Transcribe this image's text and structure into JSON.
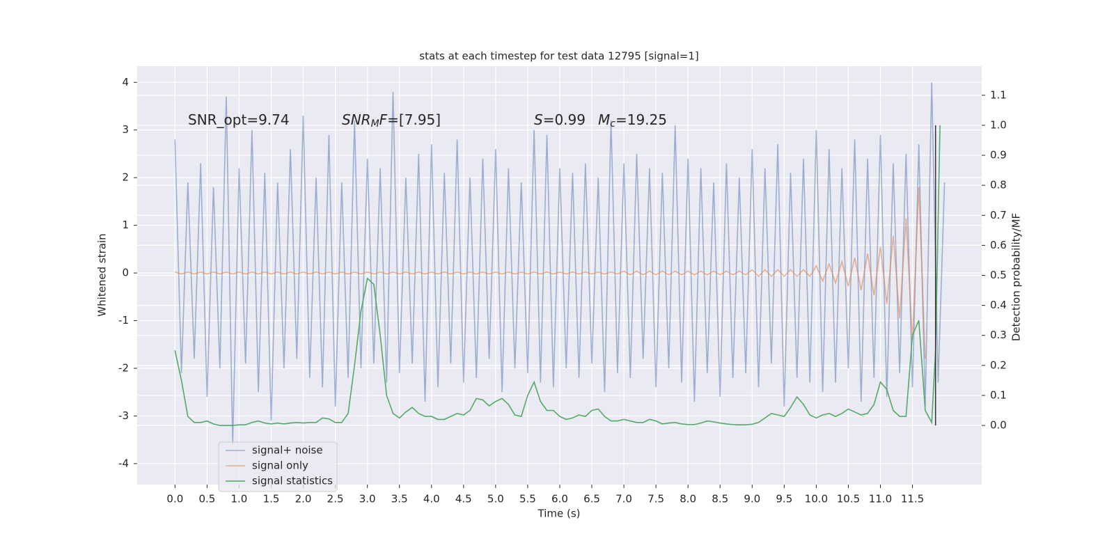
{
  "chart_data": {
    "type": "line",
    "title": "stats at each timestep for test data 12795 [signal=1]",
    "x_label": "Time (s)",
    "y_label": "Whitened strain",
    "y2_label": "Detection probability/MF",
    "xlim": [
      -0.59,
      12.58
    ],
    "ylim": [
      -4.44,
      4.34
    ],
    "y2lim": [
      -0.197,
      1.197
    ],
    "xticks": [
      {
        "value": 0,
        "label": "0.0"
      },
      {
        "value": 0.5,
        "label": "0.5"
      },
      {
        "value": 1,
        "label": "1.0"
      },
      {
        "value": 1.5,
        "label": "1.5"
      },
      {
        "value": 2,
        "label": "2.0"
      },
      {
        "value": 2.5,
        "label": "2.5"
      },
      {
        "value": 3,
        "label": "3.0"
      },
      {
        "value": 3.5,
        "label": "3.5"
      },
      {
        "value": 4,
        "label": "4.0"
      },
      {
        "value": 4.5,
        "label": "4.5"
      },
      {
        "value": 5,
        "label": "5.0"
      },
      {
        "value": 5.5,
        "label": "5.5"
      },
      {
        "value": 6,
        "label": "6.0"
      },
      {
        "value": 6.5,
        "label": "6.5"
      },
      {
        "value": 7,
        "label": "7.0"
      },
      {
        "value": 7.5,
        "label": "7.5"
      },
      {
        "value": 8,
        "label": "8.0"
      },
      {
        "value": 8.5,
        "label": "8.5"
      },
      {
        "value": 9,
        "label": "9.0"
      },
      {
        "value": 9.5,
        "label": "9.5"
      },
      {
        "value": 10,
        "label": "10.0"
      },
      {
        "value": 10.5,
        "label": "10.5"
      },
      {
        "value": 11,
        "label": "11.0"
      },
      {
        "value": 11.5,
        "label": "11.5"
      }
    ],
    "yticks": [
      -4,
      -3,
      -2,
      -1,
      0,
      1,
      2,
      3,
      4
    ],
    "y2ticks": [
      {
        "value": 0,
        "label": "0.0"
      },
      {
        "value": 0.1,
        "label": "0.1"
      },
      {
        "value": 0.2,
        "label": "0.2"
      },
      {
        "value": 0.3,
        "label": "0.3"
      },
      {
        "value": 0.4,
        "label": "0.4"
      },
      {
        "value": 0.5,
        "label": "0.5"
      },
      {
        "value": 0.6,
        "label": "0.6"
      },
      {
        "value": 0.7,
        "label": "0.7"
      },
      {
        "value": 0.8,
        "label": "0.8"
      },
      {
        "value": 0.9,
        "label": "0.9"
      },
      {
        "value": 1,
        "label": "1.0"
      },
      {
        "value": 1.1,
        "label": "1.1"
      }
    ],
    "grid": true,
    "legend": "lower left",
    "annotations": [
      [
        {
          "text": "SNR_opt=9.74"
        }
      ],
      [
        {
          "text": "SNR",
          "italic": true
        },
        {
          "text": "M",
          "italic": true,
          "sub": true
        },
        {
          "text": "F",
          "italic": true
        },
        {
          "text": "=[7.95]"
        }
      ],
      [
        {
          "text": "S",
          "italic": true
        },
        {
          "text": "=0.99"
        }
      ],
      [
        {
          "text": "M",
          "italic": true
        },
        {
          "text": "c",
          "italic": true,
          "sub": true
        },
        {
          "text": "=19.25"
        }
      ]
    ],
    "series": [
      {
        "name": "signal+ noise",
        "color": "#4c72b0",
        "opacity": 0.5,
        "x": [
          0,
          0.1,
          0.2,
          0.3,
          0.4,
          0.5,
          0.6,
          0.7,
          0.8,
          0.9,
          1,
          1.1,
          1.2,
          1.3,
          1.4,
          1.5,
          1.6,
          1.7,
          1.8,
          1.9,
          2,
          2.1,
          2.2,
          2.3,
          2.4,
          2.5,
          2.6,
          2.7,
          2.8,
          2.9,
          3,
          3.1,
          3.2,
          3.3,
          3.4,
          3.5,
          3.6,
          3.7,
          3.8,
          3.9,
          4,
          4.1,
          4.2,
          4.3,
          4.4,
          4.5,
          4.6,
          4.7,
          4.8,
          4.9,
          5,
          5.1,
          5.2,
          5.3,
          5.4,
          5.5,
          5.6,
          5.7,
          5.8,
          5.9,
          6,
          6.1,
          6.2,
          6.3,
          6.4,
          6.5,
          6.6,
          6.7,
          6.8,
          6.9,
          7,
          7.1,
          7.2,
          7.3,
          7.4,
          7.5,
          7.6,
          7.7,
          7.8,
          7.9,
          8,
          8.1,
          8.2,
          8.3,
          8.4,
          8.5,
          8.6,
          8.7,
          8.8,
          8.9,
          9,
          9.1,
          9.2,
          9.3,
          9.4,
          9.5,
          9.6,
          9.7,
          9.8,
          9.9,
          10,
          10.1,
          10.2,
          10.3,
          10.4,
          10.5,
          10.6,
          10.7,
          10.8,
          10.9,
          11,
          11.1,
          11.2,
          11.3,
          11.4,
          11.5,
          11.6,
          11.7,
          11.8,
          11.9,
          12
        ],
        "values": [
          2.8,
          -2.1,
          1.9,
          -1.8,
          2.3,
          -2.6,
          1.8,
          -2.0,
          3.7,
          -3.6,
          2.2,
          -1.9,
          3.0,
          -2.5,
          2.1,
          -3.1,
          1.9,
          -2.0,
          2.6,
          -1.8,
          3.3,
          -2.2,
          2.0,
          -2.4,
          2.9,
          -2.8,
          1.9,
          -2.2,
          3.2,
          -2.0,
          2.4,
          -1.9,
          2.2,
          -2.3,
          3.8,
          -2.1,
          2.0,
          -1.9,
          2.5,
          -2.7,
          2.7,
          -2.4,
          2.1,
          -1.9,
          2.8,
          -2.3,
          2.0,
          -2.2,
          2.4,
          -1.8,
          2.6,
          -2.5,
          2.2,
          -2.0,
          1.9,
          -2.1,
          3.0,
          -2.3,
          2.9,
          -2.4,
          2.2,
          -2.0,
          2.1,
          -2.2,
          2.3,
          -1.9,
          2.0,
          -2.5,
          3.2,
          -2.1,
          2.3,
          -2.2,
          2.5,
          -1.8,
          2.2,
          -2.4,
          2.1,
          -2.0,
          3.1,
          -2.3,
          2.4,
          -2.7,
          2.2,
          -2.1,
          1.9,
          -2.6,
          2.3,
          -2.2,
          2.0,
          -2.1,
          2.6,
          -2.4,
          2.2,
          -1.9,
          2.7,
          -2.8,
          2.1,
          -2.2,
          2.4,
          -2.3,
          3.0,
          -2.5,
          2.6,
          -2.3,
          2.2,
          -2.0,
          2.8,
          -2.7,
          2.4,
          -2.2,
          2.9,
          -2.6,
          2.3,
          -2.1,
          2.5,
          -2.4,
          2.7,
          -2.8,
          4.0,
          -2.3,
          1.9
        ]
      },
      {
        "name": "signal only",
        "color": "#dd8452",
        "opacity": 0.6,
        "x": [
          0,
          0.1,
          0.2,
          0.3,
          0.4,
          0.5,
          0.6,
          0.7,
          0.8,
          0.9,
          1,
          1.1,
          1.2,
          1.3,
          1.4,
          1.5,
          1.6,
          1.7,
          1.8,
          1.9,
          2,
          2.1,
          2.2,
          2.3,
          2.4,
          2.5,
          2.6,
          2.7,
          2.8,
          2.9,
          3,
          3.1,
          3.2,
          3.3,
          3.4,
          3.5,
          3.6,
          3.7,
          3.8,
          3.9,
          4,
          4.1,
          4.2,
          4.3,
          4.4,
          4.5,
          4.6,
          4.7,
          4.8,
          4.9,
          5,
          5.1,
          5.2,
          5.3,
          5.4,
          5.5,
          5.6,
          5.7,
          5.8,
          5.9,
          6,
          6.1,
          6.2,
          6.3,
          6.4,
          6.5,
          6.6,
          6.7,
          6.8,
          6.9,
          7,
          7.1,
          7.2,
          7.3,
          7.4,
          7.5,
          7.6,
          7.7,
          7.8,
          7.9,
          8,
          8.1,
          8.2,
          8.3,
          8.4,
          8.5,
          8.6,
          8.7,
          8.8,
          8.9,
          9,
          9.1,
          9.2,
          9.3,
          9.4,
          9.5,
          9.6,
          9.7,
          9.8,
          9.9,
          10,
          10.1,
          10.2,
          10.3,
          10.4,
          10.5,
          10.6,
          10.7,
          10.8,
          10.9,
          11,
          11.1,
          11.2,
          11.3,
          11.4,
          11.5,
          11.6,
          11.7,
          11.8,
          11.9,
          12
        ],
        "values": [
          0.02,
          -0.02,
          0.02,
          -0.02,
          0.02,
          -0.02,
          0.02,
          -0.02,
          0.02,
          -0.02,
          0.02,
          -0.02,
          0.02,
          -0.02,
          0.02,
          -0.02,
          0.02,
          -0.02,
          0.02,
          -0.02,
          0.02,
          -0.02,
          0.02,
          -0.02,
          0.02,
          -0.02,
          0.02,
          -0.02,
          0.02,
          -0.02,
          0.02,
          -0.02,
          0.02,
          -0.02,
          0.02,
          -0.02,
          0.02,
          -0.02,
          0.02,
          -0.02,
          0.02,
          -0.02,
          0.02,
          -0.02,
          0.02,
          -0.02,
          0.02,
          -0.02,
          0.02,
          -0.02,
          0.02,
          -0.02,
          0.02,
          -0.02,
          0.02,
          -0.02,
          0.02,
          -0.02,
          0.02,
          -0.02,
          0.02,
          -0.02,
          0.02,
          -0.02,
          0.02,
          -0.02,
          0.02,
          -0.02,
          0.02,
          -0.02,
          0.04,
          -0.04,
          0.04,
          -0.04,
          0.04,
          -0.04,
          0.04,
          -0.04,
          0.04,
          -0.04,
          0.04,
          -0.04,
          0.04,
          -0.04,
          0.04,
          -0.04,
          0.04,
          -0.04,
          0.04,
          -0.04,
          0.07,
          -0.07,
          0.07,
          -0.07,
          0.07,
          -0.07,
          0.07,
          -0.07,
          0.07,
          -0.07,
          0.15,
          -0.17,
          0.19,
          -0.21,
          0.24,
          -0.28,
          0.32,
          -0.36,
          0.41,
          -0.47,
          0.55,
          -0.65,
          0.78,
          -0.95,
          1.15,
          -1.4,
          1.8,
          -1.8,
          null,
          null,
          null
        ]
      },
      {
        "name": "signal statistics",
        "color": "#55a868",
        "opacity": 1,
        "axis": "y2",
        "x": [
          0,
          0.1,
          0.2,
          0.3,
          0.4,
          0.5,
          0.6,
          0.7,
          0.8,
          0.9,
          1,
          1.1,
          1.2,
          1.3,
          1.4,
          1.5,
          1.6,
          1.7,
          1.8,
          1.9,
          2,
          2.1,
          2.2,
          2.3,
          2.4,
          2.5,
          2.6,
          2.7,
          2.8,
          2.9,
          3,
          3.1,
          3.2,
          3.3,
          3.4,
          3.5,
          3.6,
          3.7,
          3.8,
          3.9,
          4,
          4.1,
          4.2,
          4.3,
          4.4,
          4.5,
          4.6,
          4.7,
          4.8,
          4.9,
          5,
          5.1,
          5.2,
          5.3,
          5.4,
          5.5,
          5.6,
          5.7,
          5.8,
          5.9,
          6,
          6.1,
          6.2,
          6.3,
          6.4,
          6.5,
          6.6,
          6.7,
          6.8,
          6.9,
          7,
          7.1,
          7.2,
          7.3,
          7.4,
          7.5,
          7.6,
          7.7,
          7.8,
          7.9,
          8,
          8.1,
          8.2,
          8.3,
          8.4,
          8.5,
          8.6,
          8.7,
          8.8,
          8.9,
          9,
          9.1,
          9.2,
          9.3,
          9.4,
          9.5,
          9.6,
          9.7,
          9.8,
          9.9,
          10,
          10.1,
          10.2,
          10.3,
          10.4,
          10.5,
          10.6,
          10.7,
          10.8,
          10.9,
          11,
          11.1,
          11.2,
          11.3,
          11.4,
          11.5,
          11.6,
          11.7,
          11.8,
          11.86,
          11.93
        ],
        "values": [
          0.25,
          0.15,
          0.03,
          0.01,
          0.01,
          0.015,
          0.005,
          0,
          0,
          0,
          0.002,
          0.002,
          0.01,
          0.015,
          0.008,
          0.005,
          0.008,
          0.005,
          0.008,
          0.01,
          0.008,
          0.01,
          0.01,
          0.025,
          0.022,
          0.01,
          0.01,
          0.04,
          0.2,
          0.38,
          0.49,
          0.47,
          0.3,
          0.1,
          0.04,
          0.025,
          0.045,
          0.06,
          0.04,
          0.03,
          0.03,
          0.02,
          0.02,
          0.03,
          0.04,
          0.035,
          0.05,
          0.09,
          0.085,
          0.065,
          0.08,
          0.09,
          0.07,
          0.035,
          0.03,
          0.1,
          0.145,
          0.08,
          0.05,
          0.05,
          0.03,
          0.02,
          0.025,
          0.035,
          0.03,
          0.05,
          0.055,
          0.03,
          0.015,
          0.015,
          0.02,
          0.015,
          0.01,
          0.01,
          0.02,
          0.015,
          0.005,
          0.008,
          0.01,
          0.005,
          0.003,
          0.003,
          0.008,
          0.015,
          0.012,
          0.008,
          0.005,
          0.003,
          0.002,
          0.002,
          0.004,
          0.01,
          0.025,
          0.04,
          0.035,
          0.03,
          0.06,
          0.095,
          0.07,
          0.035,
          0.025,
          0.035,
          0.04,
          0.03,
          0.04,
          0.055,
          0.045,
          0.035,
          0.04,
          0.07,
          0.145,
          0.12,
          0.05,
          0.03,
          0.03,
          0.3,
          0.35,
          0.05,
          0.01,
          0.25,
          1.0
        ]
      }
    ],
    "vlines": [
      {
        "x": 11.86,
        "ymin": 0,
        "ymax": 1.0,
        "axis": "y2",
        "color": "#333333"
      }
    ]
  }
}
